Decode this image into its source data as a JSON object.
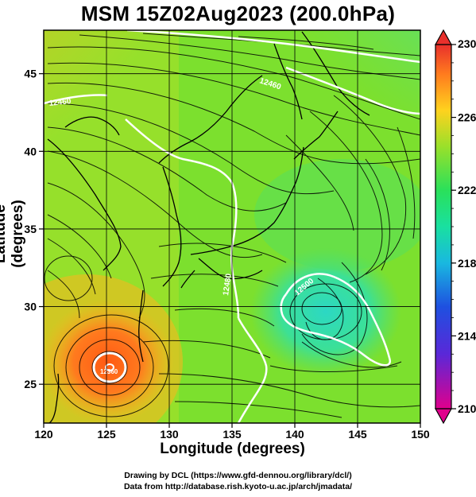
{
  "title": "MSM 15Z02Aug2023 (200.0hPa)",
  "axes": {
    "xlabel": "Longitude (degrees)",
    "ylabel": "Latitude  (degrees)",
    "x_ticks": [
      "120",
      "125",
      "130",
      "135",
      "140",
      "145",
      "150"
    ],
    "y_ticks": [
      "25",
      "30",
      "35",
      "40",
      "45"
    ],
    "xlim": [
      120,
      150
    ],
    "ylim": [
      22.5,
      47.8
    ]
  },
  "colorbar": {
    "tick_labels": [
      "230",
      "226",
      "222",
      "218",
      "214",
      "210"
    ],
    "range": [
      210,
      230
    ],
    "colors": [
      "#e0008c",
      "#1c2dcc",
      "#19c6e0",
      "#19e07a",
      "#8ae02a",
      "#ffd21e",
      "#ff7a1e",
      "#e8302c"
    ]
  },
  "contour_labels": [
    "12460",
    "12460",
    "12480",
    "12500",
    "12360"
  ],
  "credits": [
    "Drawing by DCL (https://www.gfd-dennou.org/library/dcl/)",
    "Data from http://database.rish.kyoto-u.ac.jp/arch/jmadata/"
  ]
}
